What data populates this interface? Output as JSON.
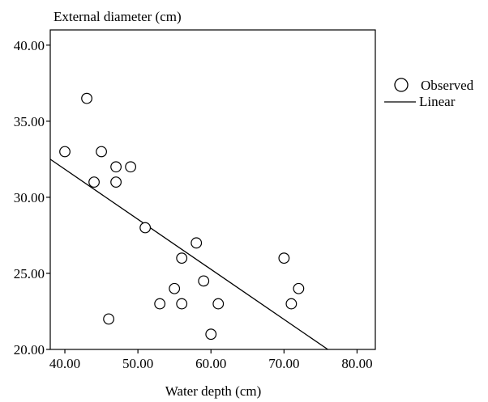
{
  "chart_data": {
    "type": "scatter",
    "title": "",
    "xlabel": "Water depth (cm)",
    "ylabel": "External diameter (cm)",
    "xlim": [
      38,
      82.5
    ],
    "ylim": [
      20,
      41
    ],
    "x_ticks": [
      "40.00",
      "50.00",
      "60.00",
      "70.00",
      "80.00"
    ],
    "x_tick_values": [
      40,
      50,
      60,
      70,
      80
    ],
    "y_ticks": [
      "20.00",
      "25.00",
      "30.00",
      "35.00",
      "40.00"
    ],
    "y_tick_values": [
      20,
      25,
      30,
      35,
      40
    ],
    "grid": false,
    "legend_position": "right",
    "series": [
      {
        "name": "Observed",
        "kind": "scatter",
        "marker": "open-circle",
        "points": [
          {
            "x": 40,
            "y": 33.0
          },
          {
            "x": 43,
            "y": 36.5
          },
          {
            "x": 44,
            "y": 31.0
          },
          {
            "x": 45,
            "y": 33.0
          },
          {
            "x": 46,
            "y": 22.0
          },
          {
            "x": 47,
            "y": 32.0
          },
          {
            "x": 47,
            "y": 31.0
          },
          {
            "x": 49,
            "y": 32.0
          },
          {
            "x": 51,
            "y": 28.0
          },
          {
            "x": 53,
            "y": 23.0
          },
          {
            "x": 55,
            "y": 24.0
          },
          {
            "x": 56,
            "y": 26.0
          },
          {
            "x": 56,
            "y": 23.0
          },
          {
            "x": 58,
            "y": 27.0
          },
          {
            "x": 59,
            "y": 24.5
          },
          {
            "x": 60,
            "y": 21.0
          },
          {
            "x": 61,
            "y": 23.0
          },
          {
            "x": 70,
            "y": 26.0
          },
          {
            "x": 71,
            "y": 23.0
          },
          {
            "x": 72,
            "y": 24.0
          }
        ]
      },
      {
        "name": "Linear",
        "kind": "line",
        "color": "#000000",
        "points": [
          {
            "x": 38,
            "y": 32.5
          },
          {
            "x": 76,
            "y": 20.0
          }
        ]
      }
    ]
  }
}
